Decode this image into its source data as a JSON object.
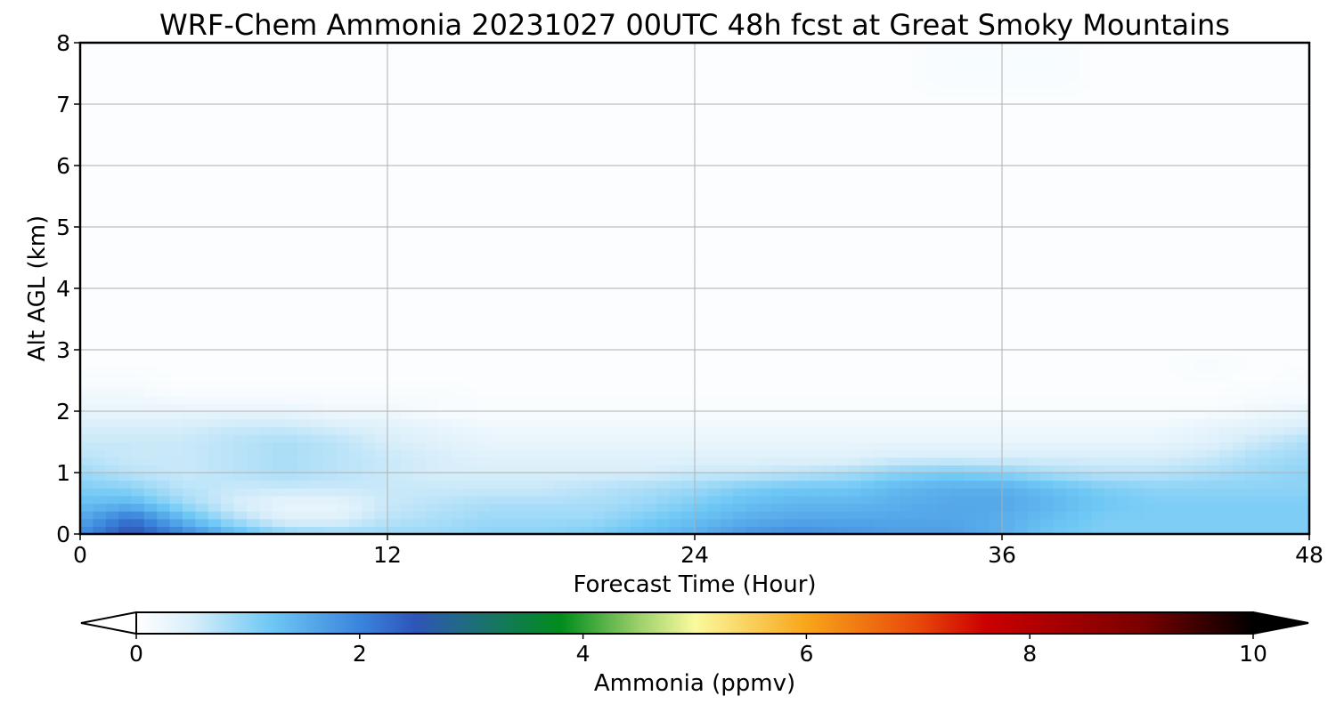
{
  "chart_data": {
    "type": "heatmap",
    "title": "WRF-Chem Ammonia  20231027 00UTC 48h fcst at Great Smoky Mountains",
    "xlabel": "Forecast Time (Hour)",
    "ylabel": "Alt AGL (km)",
    "xlim": [
      0,
      48
    ],
    "ylim": [
      0,
      8
    ],
    "x_ticks": [
      "0",
      "12",
      "24",
      "36",
      "48"
    ],
    "y_ticks": [
      "0",
      "1",
      "2",
      "3",
      "4",
      "5",
      "6",
      "7",
      "8"
    ],
    "grid": true,
    "x_hours": [
      0,
      2,
      4,
      6,
      8,
      10,
      12,
      14,
      16,
      18,
      20,
      22,
      24,
      26,
      28,
      30,
      32,
      34,
      36,
      38,
      40,
      42,
      44,
      46,
      48
    ],
    "altitude_km": [
      0.0,
      0.25,
      0.5,
      0.75,
      1.0,
      1.25,
      1.5,
      1.75,
      2.0,
      2.25,
      2.5,
      2.75,
      3.0,
      4.0,
      5.0,
      6.0,
      7.0,
      7.5,
      8.0
    ],
    "ammonia_ppmv": [
      [
        1.9,
        2.6,
        2.0,
        1.4,
        1.0,
        0.9,
        0.9,
        0.9,
        1.0,
        1.0,
        1.1,
        1.3,
        1.5,
        1.8,
        1.9,
        1.8,
        1.7,
        1.7,
        1.5,
        1.2,
        1.1,
        1.1,
        1.1,
        1.1,
        1.1
      ],
      [
        1.6,
        2.2,
        1.4,
        0.8,
        0.4,
        0.4,
        0.7,
        0.8,
        0.9,
        0.9,
        0.9,
        1.1,
        1.3,
        1.5,
        1.6,
        1.6,
        1.6,
        1.6,
        1.5,
        1.3,
        1.1,
        1.1,
        1.1,
        1.1,
        1.1
      ],
      [
        1.3,
        1.4,
        0.9,
        0.5,
        0.3,
        0.3,
        0.6,
        0.7,
        0.8,
        0.8,
        0.8,
        0.9,
        1.1,
        1.3,
        1.4,
        1.4,
        1.5,
        1.6,
        1.6,
        1.4,
        1.2,
        1.1,
        1.1,
        1.1,
        1.1
      ],
      [
        1.1,
        1.0,
        0.7,
        0.6,
        0.6,
        0.6,
        0.6,
        0.6,
        0.6,
        0.6,
        0.7,
        0.8,
        0.9,
        1.1,
        1.2,
        1.2,
        1.4,
        1.5,
        1.5,
        1.3,
        1.1,
        1.0,
        1.0,
        1.0,
        1.0
      ],
      [
        0.9,
        0.7,
        0.6,
        0.7,
        0.8,
        0.7,
        0.6,
        0.5,
        0.5,
        0.5,
        0.5,
        0.5,
        0.6,
        0.6,
        0.7,
        0.8,
        1.0,
        1.1,
        1.0,
        0.8,
        0.7,
        0.7,
        0.8,
        0.9,
        1.0
      ],
      [
        0.7,
        0.6,
        0.6,
        0.7,
        0.8,
        0.7,
        0.6,
        0.5,
        0.4,
        0.4,
        0.4,
        0.4,
        0.4,
        0.4,
        0.4,
        0.4,
        0.5,
        0.5,
        0.5,
        0.5,
        0.5,
        0.5,
        0.6,
        0.8,
        0.9
      ],
      [
        0.6,
        0.6,
        0.6,
        0.7,
        0.8,
        0.7,
        0.5,
        0.4,
        0.3,
        0.3,
        0.3,
        0.3,
        0.3,
        0.3,
        0.3,
        0.3,
        0.3,
        0.3,
        0.3,
        0.3,
        0.3,
        0.3,
        0.4,
        0.6,
        0.8
      ],
      [
        0.5,
        0.5,
        0.5,
        0.6,
        0.6,
        0.5,
        0.4,
        0.3,
        0.2,
        0.2,
        0.2,
        0.2,
        0.2,
        0.2,
        0.2,
        0.2,
        0.2,
        0.2,
        0.2,
        0.2,
        0.2,
        0.2,
        0.3,
        0.4,
        0.5
      ],
      [
        0.3,
        0.3,
        0.3,
        0.3,
        0.3,
        0.2,
        0.2,
        0.1,
        0.1,
        0.1,
        0.1,
        0.1,
        0.1,
        0.1,
        0.1,
        0.1,
        0.1,
        0.1,
        0.1,
        0.1,
        0.1,
        0.1,
        0.1,
        0.2,
        0.3
      ],
      [
        0.2,
        0.2,
        0.1,
        0.1,
        0.1,
        0.1,
        0.1,
        0.1,
        0.05,
        0.05,
        0.05,
        0.05,
        0.05,
        0.05,
        0.05,
        0.05,
        0.05,
        0.05,
        0.05,
        0.05,
        0.05,
        0.05,
        0.05,
        0.1,
        0.1
      ],
      [
        0.1,
        0.1,
        0.05,
        0.05,
        0.05,
        0.05,
        0.05,
        0.05,
        0.05,
        0.05,
        0.05,
        0.05,
        0.05,
        0.05,
        0.05,
        0.05,
        0.05,
        0.05,
        0.05,
        0.05,
        0.05,
        0.05,
        0.05,
        0.05,
        0.1
      ],
      [
        0.05,
        0.05,
        0.05,
        0.05,
        0.05,
        0.05,
        0.05,
        0.05,
        0.05,
        0.05,
        0.05,
        0.05,
        0.05,
        0.05,
        0.05,
        0.05,
        0.05,
        0.05,
        0.05,
        0.05,
        0.05,
        0.05,
        0.1,
        0.05,
        0.05
      ],
      [
        0.05,
        0.05,
        0.05,
        0.05,
        0.05,
        0.05,
        0.05,
        0.05,
        0.05,
        0.05,
        0.05,
        0.05,
        0.05,
        0.05,
        0.05,
        0.05,
        0.05,
        0.05,
        0.05,
        0.05,
        0.05,
        0.05,
        0.05,
        0.05,
        0.05
      ],
      [
        0.05,
        0.05,
        0.05,
        0.05,
        0.05,
        0.05,
        0.05,
        0.05,
        0.05,
        0.05,
        0.05,
        0.05,
        0.05,
        0.05,
        0.05,
        0.05,
        0.05,
        0.05,
        0.05,
        0.05,
        0.05,
        0.05,
        0.05,
        0.05,
        0.05
      ],
      [
        0.05,
        0.05,
        0.05,
        0.05,
        0.05,
        0.05,
        0.05,
        0.05,
        0.05,
        0.05,
        0.05,
        0.05,
        0.05,
        0.05,
        0.05,
        0.05,
        0.05,
        0.05,
        0.05,
        0.05,
        0.05,
        0.05,
        0.05,
        0.05,
        0.05
      ],
      [
        0.05,
        0.05,
        0.05,
        0.05,
        0.05,
        0.05,
        0.05,
        0.05,
        0.05,
        0.05,
        0.05,
        0.05,
        0.05,
        0.05,
        0.05,
        0.05,
        0.05,
        0.05,
        0.05,
        0.05,
        0.05,
        0.05,
        0.05,
        0.05,
        0.05
      ],
      [
        0.05,
        0.05,
        0.05,
        0.05,
        0.05,
        0.05,
        0.05,
        0.05,
        0.05,
        0.05,
        0.05,
        0.05,
        0.05,
        0.05,
        0.05,
        0.05,
        0.05,
        0.05,
        0.05,
        0.05,
        0.05,
        0.05,
        0.05,
        0.05,
        0.05
      ],
      [
        0.05,
        0.05,
        0.05,
        0.05,
        0.05,
        0.05,
        0.05,
        0.05,
        0.05,
        0.05,
        0.05,
        0.05,
        0.05,
        0.05,
        0.05,
        0.05,
        0.05,
        0.1,
        0.1,
        0.1,
        0.05,
        0.05,
        0.05,
        0.05,
        0.05
      ],
      [
        0.05,
        0.05,
        0.05,
        0.05,
        0.05,
        0.05,
        0.05,
        0.05,
        0.05,
        0.05,
        0.05,
        0.05,
        0.05,
        0.05,
        0.05,
        0.05,
        0.05,
        0.1,
        0.1,
        0.1,
        0.05,
        0.05,
        0.05,
        0.05,
        0.05
      ]
    ],
    "colorbar": {
      "label": "Ammonia  (ppmv)",
      "range": [
        0,
        10
      ],
      "ticks": [
        "0",
        "2",
        "4",
        "6",
        "8",
        "10"
      ],
      "extend": "both",
      "color_stops": [
        {
          "value": 0.0,
          "color": "#ffffff"
        },
        {
          "value": 0.5,
          "color": "#d8eefa"
        },
        {
          "value": 1.2,
          "color": "#6ec8f5"
        },
        {
          "value": 2.0,
          "color": "#3a85dc"
        },
        {
          "value": 2.5,
          "color": "#2e55b8"
        },
        {
          "value": 3.0,
          "color": "#1e6e7a"
        },
        {
          "value": 3.8,
          "color": "#008c1c"
        },
        {
          "value": 4.5,
          "color": "#9cd06a"
        },
        {
          "value": 5.0,
          "color": "#fafa9e"
        },
        {
          "value": 6.0,
          "color": "#f8a51a"
        },
        {
          "value": 7.0,
          "color": "#e8480a"
        },
        {
          "value": 7.6,
          "color": "#cc0000"
        },
        {
          "value": 9.0,
          "color": "#7a0000"
        },
        {
          "value": 10.0,
          "color": "#000000"
        }
      ]
    }
  }
}
